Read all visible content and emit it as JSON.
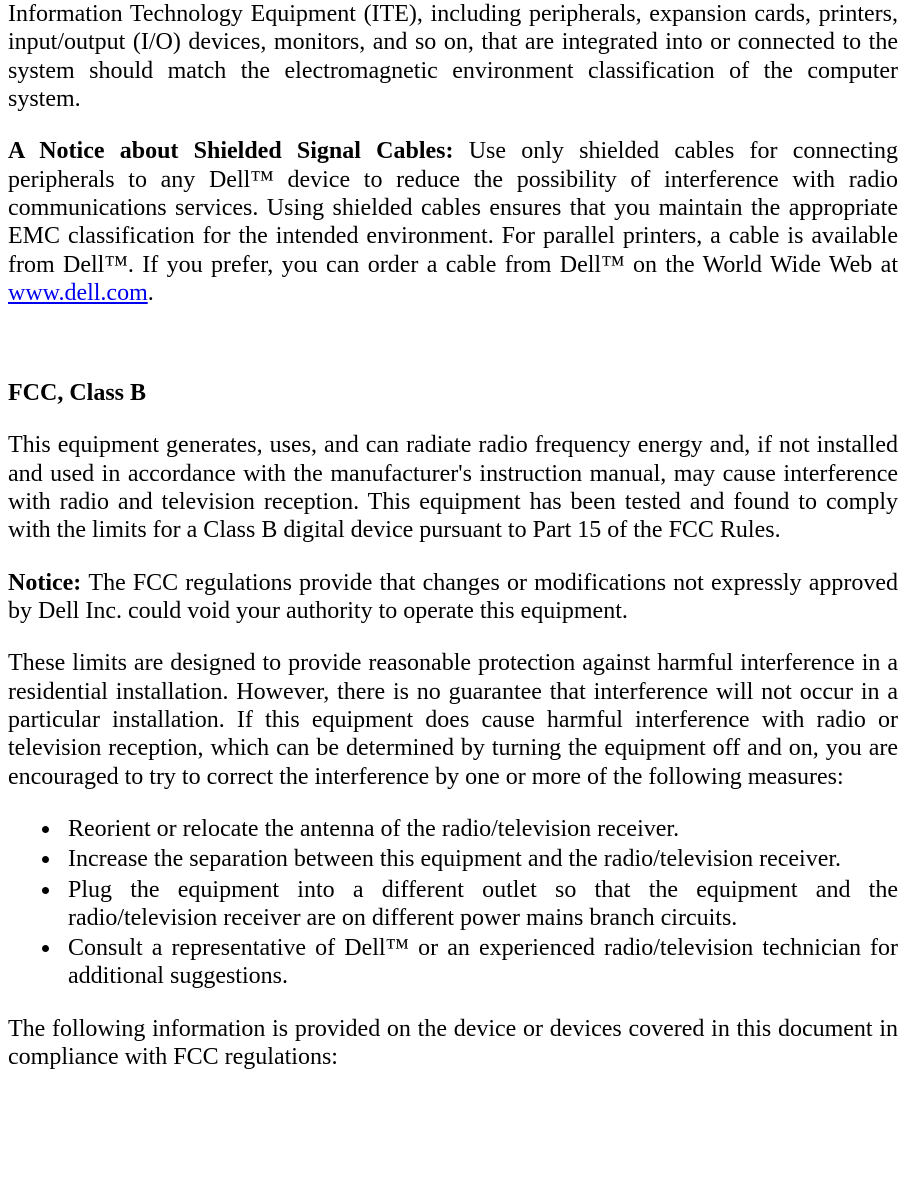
{
  "p1": "Information Technology Equipment (ITE), including peripherals, expansion cards, printers, input/output (I/O) devices, monitors, and so on, that are integrated into or connected to the system should match the electromagnetic environment classification of the computer system.",
  "p2_lead": "A Notice about Shielded Signal Cables: ",
  "p2_body_a": "Use only shielded cables for connecting peripherals to any Dell™ device to reduce the possibility of interference with radio communications services. Using shielded cables ensures that you maintain the appropriate EMC classification for the intended environment. For parallel printers, a cable is available from Dell™. If you prefer, you can order a cable from Dell™ on the World Wide Web at ",
  "p2_link": "www.dell.com",
  "p2_body_b": ".",
  "h1": "FCC, Class B",
  "p3": "This equipment generates, uses, and can radiate radio frequency energy and, if not installed and used in accordance with the manufacturer's instruction manual, may cause interference with radio and television reception. This equipment has been tested and found to comply with the limits for a Class B digital device pursuant to Part 15 of the FCC Rules.",
  "p4_lead": "Notice: ",
  "p4_body": "The FCC regulations provide that changes or modifications not expressly approved by Dell Inc. could void your authority to operate this equipment.",
  "p5": "These limits are designed to provide reasonable protection against harmful interference in a residential installation. However, there is no guarantee that interference will not occur in a particular installation. If this equipment does cause harmful interference with radio or television reception, which can be determined by turning the equipment off and on, you are encouraged to try to correct the interference by one or more of the following measures:",
  "bullets": [
    "Reorient or relocate the antenna of the radio/television receiver.",
    "Increase the separation between this equipment and the radio/television receiver.",
    "Plug the equipment into a different outlet so that the equipment and the radio/television receiver are on different power mains branch circuits.",
    "Consult a representative of Dell™ or an experienced radio/television technician for additional suggestions."
  ],
  "p6": "The following information is provided on the device or devices covered in this document in compliance with FCC regulations:",
  "link_color": "#0000ee",
  "text_color": "#000000",
  "font_family": "Times New Roman",
  "font_size_pt": 18
}
